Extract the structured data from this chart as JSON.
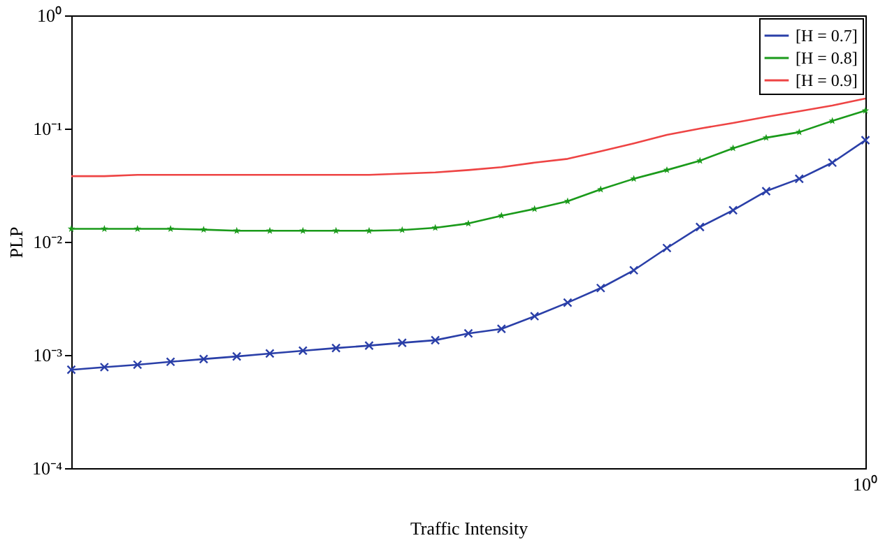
{
  "chart_data": {
    "type": "line",
    "xlabel": "Traffic Intensity",
    "ylabel": "PLP",
    "log": "y",
    "grid": false,
    "legend": "top right",
    "categories": [
      null,
      null,
      null,
      null,
      null,
      null,
      null,
      null,
      null,
      null,
      null,
      null,
      null,
      null,
      null,
      null,
      null,
      null,
      null,
      null,
      null,
      null,
      null,
      null,
      null
    ],
    "annotations": [
      "10⁰"
    ],
    "ylim": [
      0.0001,
      1
    ],
    "yticks": [
      {
        "value": 0.0001,
        "label": "10⁻⁴"
      },
      {
        "value": 0.001,
        "label": "10⁻³"
      },
      {
        "value": 0.01,
        "label": "10⁻²"
      },
      {
        "value": 0.1,
        "label": "10⁻¹"
      },
      {
        "value": 1,
        "label": "10⁰"
      }
    ],
    "series": [
      {
        "name": "[H = 0.7]",
        "color": "#2a3fa8",
        "marker": "cross",
        "values": [
          0.00074,
          0.00078,
          0.00082,
          0.00087,
          0.00092,
          0.00097,
          0.00103,
          0.00109,
          0.00115,
          0.00121,
          0.00128,
          0.00135,
          0.00155,
          0.0017,
          0.0022,
          0.0029,
          0.0039,
          0.0056,
          0.0088,
          0.0135,
          0.019,
          0.028,
          0.036,
          0.05,
          0.079
        ]
      },
      {
        "name": "[H = 0.8]",
        "color": "#1a9a1a",
        "marker": "star",
        "values": [
          0.013,
          0.013,
          0.013,
          0.013,
          0.0128,
          0.0125,
          0.0125,
          0.0125,
          0.0125,
          0.0125,
          0.0127,
          0.0133,
          0.0145,
          0.017,
          0.0195,
          0.0228,
          0.029,
          0.036,
          0.043,
          0.052,
          0.067,
          0.083,
          0.093,
          0.117,
          0.144
        ]
      },
      {
        "name": "[H = 0.9]",
        "color": "#ee4444",
        "marker": "none",
        "values": [
          0.038,
          0.038,
          0.039,
          0.039,
          0.039,
          0.039,
          0.039,
          0.039,
          0.039,
          0.039,
          0.04,
          0.041,
          0.043,
          0.0456,
          0.05,
          0.054,
          0.063,
          0.074,
          0.088,
          0.1,
          0.112,
          0.127,
          0.142,
          0.16,
          0.184
        ]
      }
    ]
  }
}
